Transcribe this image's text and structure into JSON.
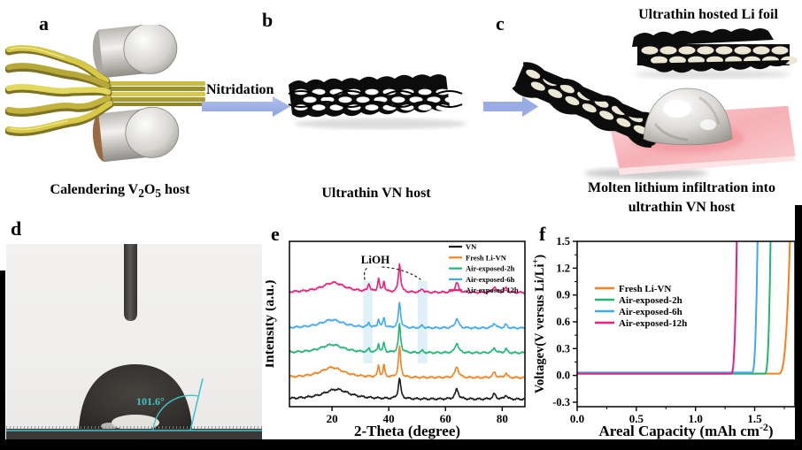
{
  "figure": {
    "panel_labels": {
      "a": "a",
      "b": "b",
      "c": "c",
      "d": "d",
      "e": "e",
      "f": "f"
    },
    "captions": {
      "a_pre": "Calendering V",
      "a_sub1": "2",
      "a_mid": "O",
      "a_sub2": "5",
      "a_post": " host",
      "b": "Ultrathin VN host",
      "c_top": "Ultrathin hosted Li foil",
      "c_line1": "Molten lithium infiltration into",
      "c_line2": "ultrathin VN host",
      "nitridation": "Nitridation",
      "d_angle": "101.6°"
    },
    "colors": {
      "arrow_blue": "#9aace4",
      "xrd_band": "#d9eef5",
      "contact_angle_cyan": "#3fc3c6",
      "vn_black": "#1a1a1a",
      "fresh_orange": "#f5821f",
      "air2h_green": "#22b573",
      "air6h_blue": "#3fa9f5",
      "air12h_magenta": "#ed1e79",
      "pad_pink": "#f6b7bc",
      "host_yellow": "#d8c847"
    }
  },
  "chart_data": [
    {
      "id": "xrd",
      "type": "line",
      "title": "",
      "xlabel": "2-Theta (degree)",
      "ylabel": "Intensity (a.u.)",
      "xlim": [
        5,
        88
      ],
      "x_ticks": [
        20,
        40,
        60,
        80
      ],
      "x_tick_labels": [
        "20",
        "40",
        "60",
        "80"
      ],
      "annotation": "LiOH",
      "highlight_bands": [
        [
          31.0,
          34.3
        ],
        [
          50.2,
          53.6
        ]
      ],
      "band_color": "#d9eef5",
      "legend_position": "top-right",
      "grid": false,
      "series": [
        {
          "name": "VN",
          "color": "#1a1a1a",
          "baseline": 0.045,
          "hump": [
            21.5,
            0.06,
            5.5
          ],
          "peaks": [
            [
              43.8,
              0.125,
              0.5
            ],
            [
              64.0,
              0.06,
              0.7
            ],
            [
              77.2,
              0.032,
              0.6
            ],
            [
              81.3,
              0.026,
              0.5
            ]
          ]
        },
        {
          "name": "Fresh Li-VN",
          "color": "#f5821f",
          "baseline": 0.175,
          "hump": [
            20.0,
            0.062,
            5.0
          ],
          "peaks": [
            [
              36.4,
              0.07,
              0.35
            ],
            [
              38.3,
              0.072,
              0.35
            ],
            [
              43.8,
              0.185,
              0.45
            ],
            [
              64.0,
              0.068,
              0.7
            ],
            [
              77.2,
              0.033,
              0.6
            ],
            [
              81.3,
              0.028,
              0.5
            ]
          ]
        },
        {
          "name": "Air-exposed-2h",
          "color": "#22b573",
          "baseline": 0.325,
          "hump": [
            20.0,
            0.05,
            5.0
          ],
          "peaks": [
            [
              33.0,
              0.02,
              0.4
            ],
            [
              36.4,
              0.05,
              0.35
            ],
            [
              38.3,
              0.058,
              0.35
            ],
            [
              43.8,
              0.17,
              0.45
            ],
            [
              51.8,
              0.012,
              0.5
            ],
            [
              64.0,
              0.06,
              0.7
            ],
            [
              77.2,
              0.03,
              0.6
            ],
            [
              81.3,
              0.024,
              0.5
            ]
          ]
        },
        {
          "name": "Air-exposed-6h",
          "color": "#3fa9f5",
          "baseline": 0.475,
          "hump": [
            20.0,
            0.05,
            5.0
          ],
          "peaks": [
            [
              33.0,
              0.028,
              0.4
            ],
            [
              36.4,
              0.052,
              0.35
            ],
            [
              38.3,
              0.062,
              0.35
            ],
            [
              43.8,
              0.155,
              0.45
            ],
            [
              51.8,
              0.015,
              0.5
            ],
            [
              64.0,
              0.057,
              0.7
            ],
            [
              77.2,
              0.03,
              0.6
            ],
            [
              81.3,
              0.022,
              0.5
            ]
          ]
        },
        {
          "name": "Air-exposed-12h",
          "color": "#ed1e79",
          "baseline": 0.69,
          "hump": [
            20.5,
            0.06,
            5.0
          ],
          "peaks": [
            [
              33.0,
              0.05,
              0.4
            ],
            [
              36.4,
              0.082,
              0.35
            ],
            [
              38.3,
              0.065,
              0.35
            ],
            [
              43.8,
              0.175,
              0.45
            ],
            [
              51.8,
              0.022,
              0.5
            ],
            [
              64.0,
              0.06,
              0.7
            ],
            [
              77.2,
              0.035,
              0.6
            ],
            [
              81.3,
              0.03,
              0.5
            ]
          ]
        }
      ]
    },
    {
      "id": "voltage",
      "type": "line",
      "title": "",
      "xlabel_parts": [
        "Areal Capacity (mAh cm",
        {
          "sup": "-2"
        },
        ")"
      ],
      "ylabel_parts": [
        "Voltagev(V versus Li/Li",
        {
          "sup": "+"
        },
        ")"
      ],
      "xlim": [
        0,
        1.84
      ],
      "ylim": [
        -0.35,
        1.5
      ],
      "x_ticks": [
        0.0,
        0.5,
        1.0,
        1.5
      ],
      "x_tick_labels": [
        "0.0",
        "0.5",
        "1.0",
        "1.5"
      ],
      "y_ticks": [
        -0.3,
        0.0,
        0.3,
        0.6,
        0.9,
        1.2,
        1.5
      ],
      "y_tick_labels": [
        "-0.3",
        "0.0",
        "0.3",
        "0.6",
        "0.9",
        "1.2",
        "1.5"
      ],
      "legend_position": "left-middle",
      "grid": false,
      "series": [
        {
          "name": "Fresh Li-VN",
          "color": "#f5821f",
          "plateau": 0.02,
          "knee": 1.7,
          "rise": 0.1
        },
        {
          "name": "Air-exposed-2h",
          "color": "#22b573",
          "plateau": 0.02,
          "knee": 1.585,
          "rise": 0.05
        },
        {
          "name": "Air-exposed-6h",
          "color": "#3fa9f5",
          "plateau": 0.032,
          "knee": 1.475,
          "rise": 0.05
        },
        {
          "name": "Air-exposed-12h",
          "color": "#ed1e79",
          "plateau": 0.02,
          "knee": 1.3,
          "rise": 0.05
        }
      ]
    }
  ]
}
